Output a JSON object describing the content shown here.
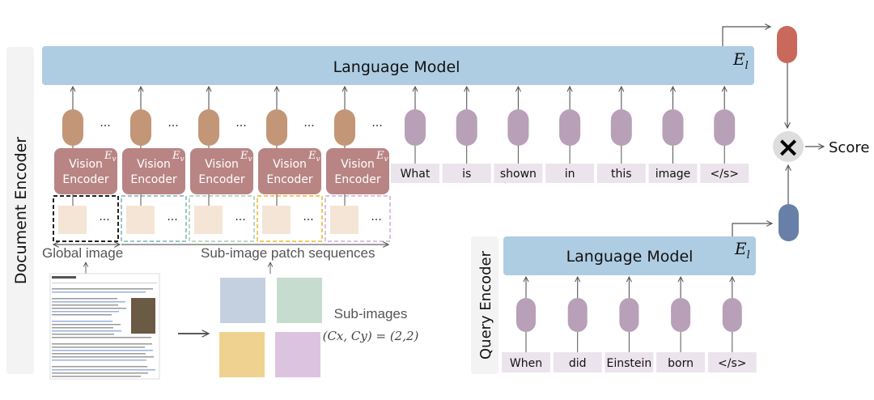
{
  "document_encoder": {
    "label": "Document Encoder",
    "language_model": {
      "label": "Language Model",
      "symbol": "E",
      "subscript": "l"
    },
    "vision_encoder": {
      "line1": "Vision",
      "line2": "Encoder",
      "symbol": "E",
      "subscript": "v",
      "count": 5
    },
    "ellipsis": "···",
    "text_tokens": [
      "What",
      "is",
      "shown",
      "in",
      "this",
      "image",
      "</s>"
    ],
    "global_image_label": "Global image",
    "sub_image_label": "Sub-image patch sequences",
    "sub_images_label": "Sub-images",
    "sub_images_formula": "(Cx, Cy) = (2,2)"
  },
  "query_encoder": {
    "label": "Query Encoder",
    "language_model": {
      "label": "Language Model",
      "symbol": "E",
      "subscript": "l"
    },
    "tokens": [
      "When",
      "did",
      "Einstein",
      "born",
      "</s>"
    ]
  },
  "score": {
    "operator": "×",
    "label": "Score"
  },
  "colors": {
    "language_model": "#aecde3",
    "vision_encoder": "#b88584",
    "vision_token": "#c29676",
    "text_token": "#b8a0b8",
    "doc_embedding": "#c9695c",
    "query_embedding": "#6880a8",
    "sub_image_blue": "#c4d0e0",
    "sub_image_green": "#c6dccf",
    "sub_image_yellow": "#f0d290",
    "sub_image_purple": "#dcc4e0"
  }
}
